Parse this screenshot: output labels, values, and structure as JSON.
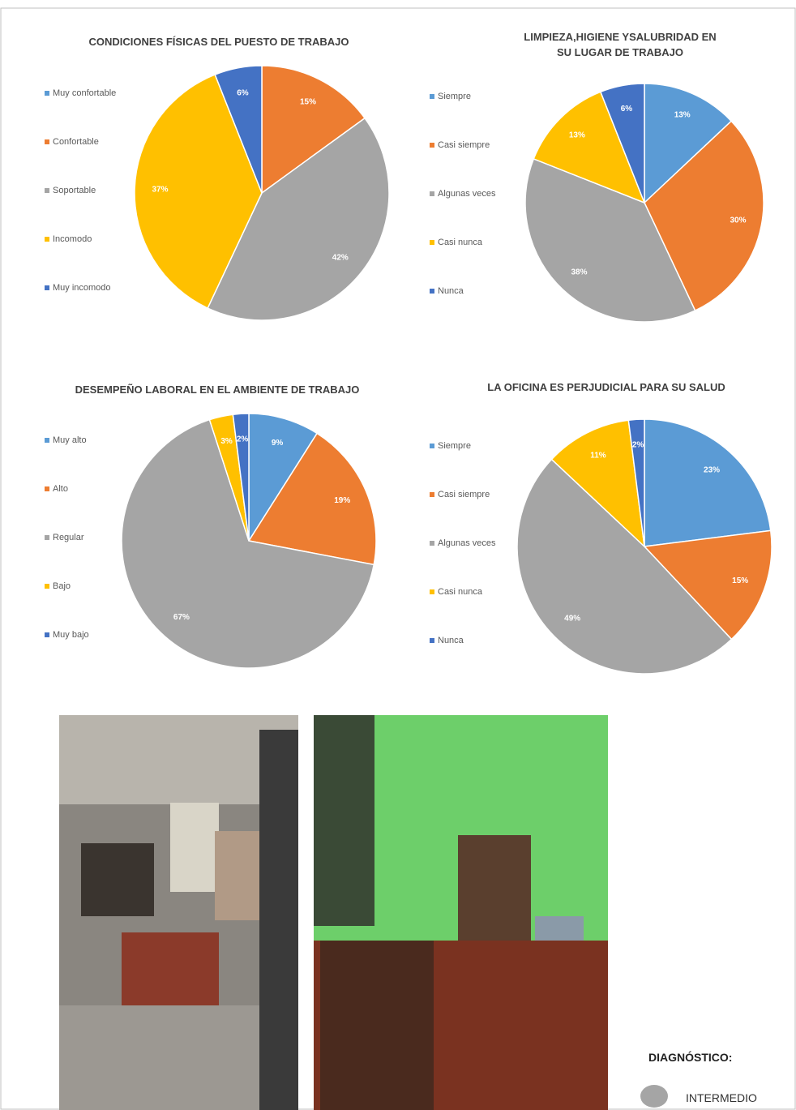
{
  "chart_data": [
    {
      "type": "pie",
      "title": "CONDICIONES FÍSICAS DEL PUESTO DE TRABAJO",
      "categories": [
        "Muy confortable",
        "Confortable",
        "Soportable",
        "Incomodo",
        "Muy incomodo"
      ],
      "values": [
        0,
        15,
        42,
        37,
        6
      ],
      "value_labels": [
        "0%",
        "15%",
        "42%",
        "37%",
        "6%"
      ],
      "colors": [
        "#5b9bd5",
        "#ed7d31",
        "#a5a5a5",
        "#ffc000",
        "#4472c4"
      ]
    },
    {
      "type": "pie",
      "title": "LIMPIEZA,HIGIENE YSALUBRIDAD EN SU LUGAR DE TRABAJO",
      "categories": [
        "Siempre",
        "Casi siempre",
        "Algunas veces",
        "Casi nunca",
        "Nunca"
      ],
      "values": [
        13,
        30,
        38,
        13,
        6
      ],
      "value_labels": [
        "13%",
        "30%",
        "38%",
        "13%",
        "6%"
      ],
      "colors": [
        "#5b9bd5",
        "#ed7d31",
        "#a5a5a5",
        "#ffc000",
        "#4472c4"
      ]
    },
    {
      "type": "pie",
      "title": "DESEMPEÑO LABORAL EN EL AMBIENTE DE TRABAJO",
      "categories": [
        "Muy alto",
        "Alto",
        "Regular",
        "Bajo",
        "Muy bajo"
      ],
      "values": [
        9,
        19,
        67,
        3,
        2
      ],
      "value_labels": [
        "9%",
        "19%",
        "67%",
        "3%",
        "2%"
      ],
      "colors": [
        "#5b9bd5",
        "#ed7d31",
        "#a5a5a5",
        "#ffc000",
        "#4472c4"
      ]
    },
    {
      "type": "pie",
      "title": "LA OFICINA ES PERJUDICIAL PARA SU SALUD",
      "categories": [
        "Siempre",
        "Casi siempre",
        "Algunas veces",
        "Casi nunca",
        "Nunca"
      ],
      "values": [
        23,
        15,
        49,
        11,
        2
      ],
      "value_labels": [
        "23%",
        "15%",
        "49%",
        "11%",
        "2%"
      ],
      "colors": [
        "#5b9bd5",
        "#ed7d31",
        "#a5a5a5",
        "#ffc000",
        "#4472c4"
      ]
    }
  ],
  "diagnosis": {
    "heading": "DIAGNÓSTICO:",
    "result": "INTERMEDIO"
  }
}
